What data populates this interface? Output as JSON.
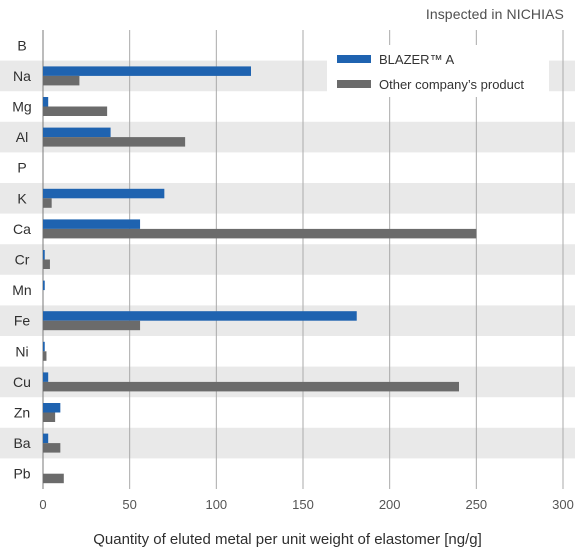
{
  "chart_data": {
    "type": "bar",
    "orientation": "horizontal",
    "note": "Inspected in NICHIAS",
    "title": "",
    "xlabel": "Quantity of eluted metal per unit weight of elastomer [ng/g]",
    "ylabel": "",
    "xlim": [
      0,
      300
    ],
    "xticks": [
      0,
      50,
      100,
      150,
      200,
      250,
      300
    ],
    "grid": true,
    "legend_position": "top-right",
    "categories": [
      "B",
      "Na",
      "Mg",
      "Al",
      "P",
      "K",
      "Ca",
      "Cr",
      "Mn",
      "Fe",
      "Ni",
      "Cu",
      "Zn",
      "Ba",
      "Pb"
    ],
    "series": [
      {
        "name": "BLAZER™ A",
        "color": "#1f63b0",
        "values": [
          0,
          120,
          3,
          39,
          0,
          70,
          56,
          1,
          1,
          181,
          1,
          3,
          10,
          3,
          0
        ]
      },
      {
        "name": "Other company’s product",
        "color": "#6b6b6b",
        "values": [
          0,
          21,
          37,
          82,
          0,
          5,
          250,
          4,
          0,
          56,
          2,
          240,
          7,
          10,
          12
        ]
      }
    ]
  },
  "style": {
    "band_color": "#e9e9e9",
    "grid_color": "#aaaaaa",
    "axis_color": "#7a7a7a"
  }
}
